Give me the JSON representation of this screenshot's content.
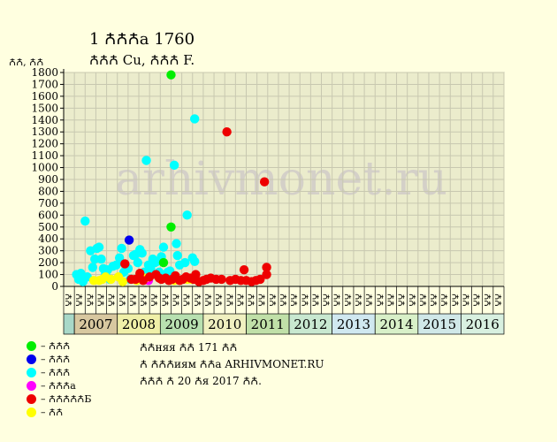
{
  "header": {
    "title": "1 ꙈꙈꙈа 1760",
    "subtitle": "ꙈꙈꙈ Cu, ꙈꙈꙈ F.",
    "ylabel": "ꙈꙈ, ꙈꙈ"
  },
  "legend": [
    {
      "label": "– ꙈꙈꙈ",
      "color": "#00ee00"
    },
    {
      "label": "– ꙈꙈꙈ",
      "color": "#0000ee"
    },
    {
      "label": "– ꙈꙈꙈ",
      "color": "#00ffff"
    },
    {
      "label": "– ꙈꙈꙈа",
      "color": "#ff00ff"
    },
    {
      "label": "– ꙈꙈꙈꙈꙈБ",
      "color": "#ee0000"
    },
    {
      "label": "– ꙈꙈ",
      "color": "#ffff00"
    }
  ],
  "notes": {
    "line1": "ꙈꙈняя ꙈꙈ 171 ꙈꙈ",
    "line2": "Ꙉ ꙈꙈꙈиям ꙈꙈа ARHIVMONET.RU",
    "line3": "ꙈꙈꙈ Ꙉ 20 Ꙉя 2017 ꙈꙈ."
  },
  "watermark": "arhivmonet.ru",
  "chart_data": {
    "type": "scatter",
    "ylim": [
      0,
      1800
    ],
    "yticks": [
      0,
      100,
      200,
      300,
      400,
      500,
      600,
      700,
      800,
      900,
      1000,
      1100,
      1200,
      1300,
      1400,
      1500,
      1600,
      1700,
      1800
    ],
    "grid": true,
    "quarter_labels": [
      "ꙈꙈ",
      "ꙈꙈ",
      "ꙈꙈ",
      "ꙈꙈ"
    ],
    "years": [
      {
        "label": "2007",
        "color": "#d8c8a0"
      },
      {
        "label": "2008",
        "color": "#f0f0a8"
      },
      {
        "label": "2009",
        "color": "#b8e0b0"
      },
      {
        "label": "2010",
        "color": "#f0f0c0"
      },
      {
        "label": "2011",
        "color": "#c0e0a8"
      },
      {
        "label": "2012",
        "color": "#c8e8d0"
      },
      {
        "label": "2013",
        "color": "#d0e8f0"
      },
      {
        "label": "2014",
        "color": "#d8f0c8"
      },
      {
        "label": "2015",
        "color": "#d0e8e8"
      },
      {
        "label": "2016",
        "color": "#d8f0e0"
      }
    ],
    "lead_cell_color": "#a8d8c8",
    "series": [
      {
        "color": "#00ffff",
        "points": [
          [
            0.2,
            100
          ],
          [
            0.4,
            60
          ],
          [
            0.6,
            110
          ],
          [
            0.8,
            40
          ],
          [
            1.0,
            550
          ],
          [
            1.2,
            80
          ],
          [
            1.5,
            300
          ],
          [
            1.7,
            160
          ],
          [
            1.9,
            230
          ],
          [
            2.1,
            320
          ],
          [
            2.3,
            330
          ],
          [
            2.5,
            230
          ],
          [
            2.7,
            150
          ],
          [
            2.9,
            110
          ],
          [
            3.1,
            140
          ],
          [
            3.3,
            60
          ],
          [
            3.6,
            170
          ],
          [
            3.9,
            180
          ],
          [
            4.2,
            240
          ],
          [
            4.4,
            320
          ],
          [
            4.6,
            120
          ],
          [
            4.8,
            170
          ],
          [
            5.0,
            150
          ],
          [
            5.2,
            60
          ],
          [
            5.5,
            260
          ],
          [
            5.7,
            270
          ],
          [
            5.9,
            200
          ],
          [
            6.1,
            310
          ],
          [
            6.3,
            280
          ],
          [
            6.5,
            120
          ],
          [
            6.7,
            1060
          ],
          [
            6.9,
            180
          ],
          [
            7.1,
            150
          ],
          [
            7.3,
            230
          ],
          [
            7.5,
            200
          ],
          [
            7.7,
            210
          ],
          [
            7.9,
            120
          ],
          [
            8.1,
            250
          ],
          [
            8.3,
            330
          ],
          [
            8.5,
            90
          ],
          [
            8.7,
            120
          ],
          [
            8.9,
            130
          ],
          [
            9.3,
            1020
          ],
          [
            9.5,
            360
          ],
          [
            9.6,
            260
          ],
          [
            9.8,
            180
          ],
          [
            10.3,
            200
          ],
          [
            10.5,
            600
          ],
          [
            11.0,
            240
          ],
          [
            11.2,
            210
          ],
          [
            11.2,
            1410
          ]
        ]
      },
      {
        "color": "#00ee00",
        "points": [
          [
            8.3,
            200
          ],
          [
            9.0,
            1780
          ],
          [
            9.0,
            500
          ]
        ]
      },
      {
        "color": "#0000ee",
        "points": [
          [
            5.1,
            390
          ]
        ]
      },
      {
        "color": "#ff00ff",
        "points": [
          [
            6.9,
            50
          ]
        ]
      },
      {
        "color": "#ffff00",
        "points": [
          [
            1.8,
            50
          ],
          [
            2.3,
            50
          ],
          [
            2.6,
            60
          ],
          [
            2.9,
            80
          ],
          [
            3.4,
            60
          ],
          [
            4.1,
            80
          ],
          [
            4.5,
            40
          ],
          [
            5.8,
            50
          ],
          [
            6.6,
            70
          ],
          [
            9.3,
            50
          ],
          [
            10.5,
            60
          ],
          [
            10.9,
            60
          ]
        ]
      },
      {
        "color": "#ee0000",
        "points": [
          [
            4.7,
            190
          ],
          [
            5.3,
            60
          ],
          [
            5.7,
            60
          ],
          [
            6.1,
            110
          ],
          [
            6.4,
            50
          ],
          [
            7.0,
            80
          ],
          [
            7.6,
            100
          ],
          [
            7.9,
            70
          ],
          [
            8.1,
            60
          ],
          [
            8.5,
            70
          ],
          [
            8.8,
            50
          ],
          [
            9.1,
            60
          ],
          [
            9.4,
            90
          ],
          [
            9.8,
            50
          ],
          [
            10.1,
            60
          ],
          [
            10.4,
            80
          ],
          [
            10.8,
            70
          ],
          [
            11.1,
            60
          ],
          [
            11.3,
            100
          ],
          [
            11.6,
            40
          ],
          [
            12.0,
            50
          ],
          [
            12.3,
            60
          ],
          [
            12.7,
            70
          ],
          [
            13.2,
            60
          ],
          [
            13.7,
            60
          ],
          [
            14.2,
            1300
          ],
          [
            14.5,
            50
          ],
          [
            15.0,
            60
          ],
          [
            15.5,
            50
          ],
          [
            15.8,
            140
          ],
          [
            16.0,
            50
          ],
          [
            16.5,
            40
          ],
          [
            16.9,
            50
          ],
          [
            17.3,
            60
          ],
          [
            17.7,
            880
          ],
          [
            17.9,
            160
          ],
          [
            17.9,
            100
          ]
        ]
      }
    ]
  }
}
